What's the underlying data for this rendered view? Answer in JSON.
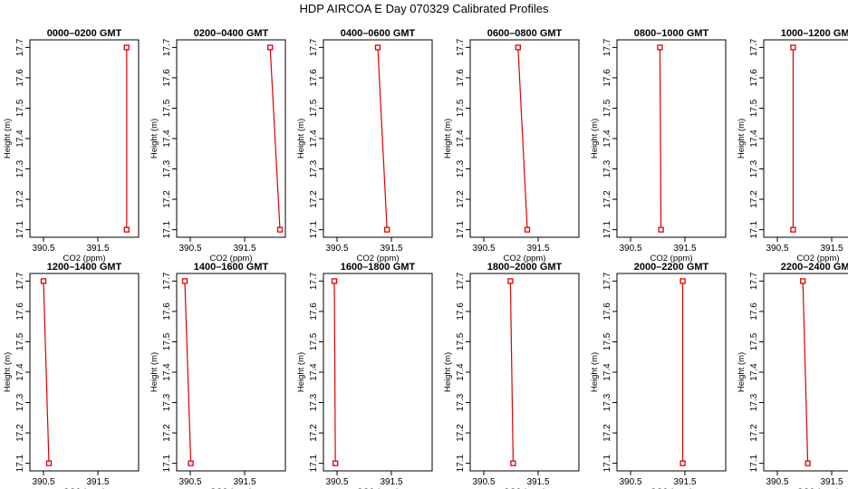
{
  "title": "HDP  AIRCOA E  Day 070329  Calibrated Profiles",
  "chart_data": {
    "type": "line",
    "xlabel": "CO2 (ppm)",
    "ylabel": "Height (m)",
    "xlim": [
      390.25,
      392.25
    ],
    "ylim": [
      17.075,
      17.725
    ],
    "xticks": [
      390.5,
      391.5
    ],
    "xtick_labels": [
      "390.5",
      "391.5"
    ],
    "yticks": [
      17.1,
      17.2,
      17.3,
      17.4,
      17.5,
      17.6,
      17.7
    ],
    "ytick_labels": [
      "17.1",
      "17.2",
      "17.3",
      "17.4",
      "17.5",
      "17.6",
      "17.7"
    ],
    "panels": [
      {
        "title": "0000–0200 GMT",
        "points": [
          {
            "co2": 392.03,
            "height": 17.7
          },
          {
            "co2": 392.03,
            "height": 17.1
          }
        ]
      },
      {
        "title": "0200–0400 GMT",
        "points": [
          {
            "co2": 391.97,
            "height": 17.7
          },
          {
            "co2": 392.15,
            "height": 17.1
          }
        ]
      },
      {
        "title": "0400–0600 GMT",
        "points": [
          {
            "co2": 391.25,
            "height": 17.7
          },
          {
            "co2": 391.42,
            "height": 17.1
          }
        ]
      },
      {
        "title": "0600–0800 GMT",
        "points": [
          {
            "co2": 391.13,
            "height": 17.7
          },
          {
            "co2": 391.3,
            "height": 17.1
          }
        ]
      },
      {
        "title": "0800–1000 GMT",
        "points": [
          {
            "co2": 391.04,
            "height": 17.7
          },
          {
            "co2": 391.06,
            "height": 17.1
          }
        ]
      },
      {
        "title": "1000–1200 GMT",
        "points": [
          {
            "co2": 390.79,
            "height": 17.7
          },
          {
            "co2": 390.79,
            "height": 17.1
          }
        ]
      },
      {
        "title": "1200–1400 GMT",
        "points": [
          {
            "co2": 390.5,
            "height": 17.7
          },
          {
            "co2": 390.6,
            "height": 17.1
          }
        ]
      },
      {
        "title": "1400–1600 GMT",
        "points": [
          {
            "co2": 390.4,
            "height": 17.7
          },
          {
            "co2": 390.51,
            "height": 17.1
          }
        ]
      },
      {
        "title": "1600–1800 GMT",
        "points": [
          {
            "co2": 390.45,
            "height": 17.7
          },
          {
            "co2": 390.47,
            "height": 17.1
          }
        ]
      },
      {
        "title": "1800–2000 GMT",
        "points": [
          {
            "co2": 390.99,
            "height": 17.7
          },
          {
            "co2": 391.04,
            "height": 17.1
          }
        ]
      },
      {
        "title": "2000–2200 GMT",
        "points": [
          {
            "co2": 391.46,
            "height": 17.7
          },
          {
            "co2": 391.46,
            "height": 17.1
          }
        ]
      },
      {
        "title": "2200–2400 GMT",
        "points": [
          {
            "co2": 390.97,
            "height": 17.7
          },
          {
            "co2": 391.06,
            "height": 17.1
          }
        ]
      }
    ]
  }
}
